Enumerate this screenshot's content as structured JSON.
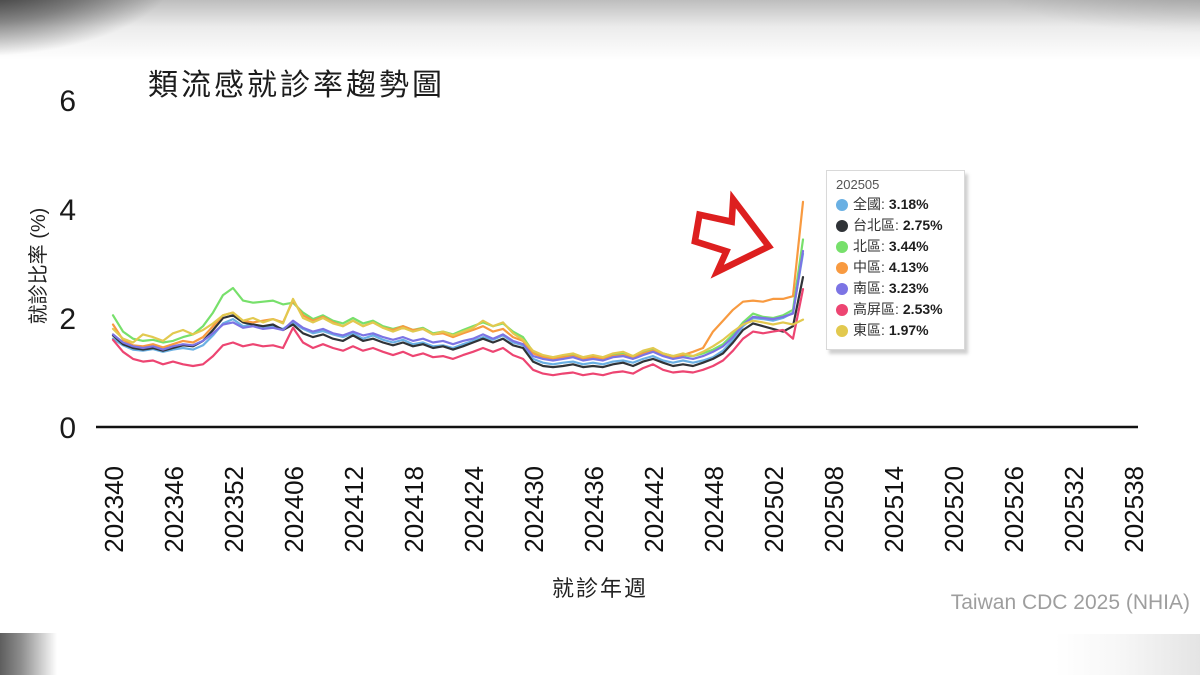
{
  "page": {
    "attribution": "Taiwan CDC 2025 (NHIA)"
  },
  "annotations": {
    "arrow_color": "#dd1f1f"
  },
  "tooltip": {
    "week": "202505",
    "items": [
      {
        "id": "nationwide",
        "label": "全國",
        "value": "3.18%",
        "color": "#6ab0e3"
      },
      {
        "id": "taipei",
        "label": "台北區",
        "value": "2.75%",
        "color": "#2f3337"
      },
      {
        "id": "north",
        "label": "北區",
        "value": "3.44%",
        "color": "#77e06b"
      },
      {
        "id": "central",
        "label": "中區",
        "value": "4.13%",
        "color": "#f89a40"
      },
      {
        "id": "south",
        "label": "南區",
        "value": "3.23%",
        "color": "#7c74e4"
      },
      {
        "id": "kaoping",
        "label": "高屏區",
        "value": "2.53%",
        "color": "#ed4572"
      },
      {
        "id": "east",
        "label": "東區",
        "value": "1.97%",
        "color": "#e2c94f"
      }
    ]
  },
  "chart_data": {
    "type": "line",
    "title": "類流感就診率趨勢圖",
    "xlabel": "就診年週",
    "ylabel": "就診比率 (%)",
    "ylim": [
      0,
      6
    ],
    "yticks": [
      0,
      2,
      4,
      6
    ],
    "grid": false,
    "legend_position": "tooltip-right",
    "x_tick_labels": [
      "202340",
      "202346",
      "202352",
      "202406",
      "202412",
      "202418",
      "202424",
      "202430",
      "202436",
      "202442",
      "202448",
      "202502",
      "202508",
      "202514",
      "202520",
      "202526",
      "202532",
      "202538"
    ],
    "x_axis_total_weeks": 103,
    "weeks": [
      "202340",
      "202341",
      "202342",
      "202343",
      "202344",
      "202345",
      "202346",
      "202347",
      "202348",
      "202349",
      "202350",
      "202351",
      "202352",
      "202401",
      "202402",
      "202403",
      "202404",
      "202405",
      "202406",
      "202407",
      "202408",
      "202409",
      "202410",
      "202411",
      "202412",
      "202413",
      "202414",
      "202415",
      "202416",
      "202417",
      "202418",
      "202419",
      "202420",
      "202421",
      "202422",
      "202423",
      "202424",
      "202425",
      "202426",
      "202427",
      "202428",
      "202429",
      "202430",
      "202431",
      "202432",
      "202433",
      "202434",
      "202435",
      "202436",
      "202437",
      "202438",
      "202439",
      "202440",
      "202441",
      "202442",
      "202443",
      "202444",
      "202445",
      "202446",
      "202447",
      "202448",
      "202449",
      "202450",
      "202451",
      "202452",
      "202501",
      "202502",
      "202503",
      "202504",
      "202505"
    ],
    "series": [
      {
        "id": "nationwide",
        "name": "全國",
        "color": "#6ab0e3",
        "values": [
          1.62,
          1.5,
          1.42,
          1.4,
          1.43,
          1.38,
          1.42,
          1.45,
          1.42,
          1.5,
          1.68,
          1.9,
          1.98,
          1.85,
          1.88,
          1.82,
          1.85,
          1.8,
          1.92,
          1.8,
          1.72,
          1.76,
          1.7,
          1.65,
          1.72,
          1.62,
          1.68,
          1.6,
          1.55,
          1.6,
          1.52,
          1.55,
          1.48,
          1.5,
          1.45,
          1.52,
          1.58,
          1.65,
          1.6,
          1.68,
          1.55,
          1.5,
          1.25,
          1.18,
          1.15,
          1.18,
          1.2,
          1.15,
          1.18,
          1.15,
          1.2,
          1.22,
          1.18,
          1.25,
          1.3,
          1.22,
          1.18,
          1.22,
          1.18,
          1.22,
          1.28,
          1.4,
          1.6,
          1.85,
          2.0,
          1.98,
          1.95,
          2.0,
          2.1,
          3.18
        ]
      },
      {
        "id": "taipei",
        "name": "台北區",
        "color": "#2f3337",
        "values": [
          1.68,
          1.52,
          1.45,
          1.42,
          1.45,
          1.4,
          1.45,
          1.5,
          1.48,
          1.58,
          1.78,
          2.0,
          2.05,
          1.92,
          1.88,
          1.85,
          1.88,
          1.78,
          1.88,
          1.72,
          1.65,
          1.7,
          1.62,
          1.58,
          1.68,
          1.58,
          1.62,
          1.55,
          1.5,
          1.55,
          1.48,
          1.52,
          1.45,
          1.48,
          1.42,
          1.48,
          1.55,
          1.62,
          1.55,
          1.62,
          1.5,
          1.45,
          1.2,
          1.12,
          1.1,
          1.12,
          1.15,
          1.1,
          1.12,
          1.1,
          1.15,
          1.18,
          1.12,
          1.2,
          1.25,
          1.18,
          1.12,
          1.15,
          1.12,
          1.18,
          1.25,
          1.35,
          1.55,
          1.78,
          1.9,
          1.85,
          1.8,
          1.75,
          1.85,
          2.75
        ]
      },
      {
        "id": "north",
        "name": "北區",
        "color": "#77e06b",
        "values": [
          2.05,
          1.75,
          1.62,
          1.58,
          1.6,
          1.55,
          1.58,
          1.65,
          1.7,
          1.85,
          2.1,
          2.42,
          2.55,
          2.32,
          2.28,
          2.3,
          2.32,
          2.25,
          2.28,
          2.1,
          1.98,
          2.05,
          1.95,
          1.9,
          2.0,
          1.9,
          1.95,
          1.85,
          1.8,
          1.85,
          1.78,
          1.82,
          1.72,
          1.75,
          1.7,
          1.78,
          1.85,
          1.92,
          1.85,
          1.9,
          1.75,
          1.65,
          1.38,
          1.3,
          1.28,
          1.3,
          1.32,
          1.28,
          1.3,
          1.28,
          1.32,
          1.35,
          1.3,
          1.38,
          1.42,
          1.35,
          1.3,
          1.32,
          1.3,
          1.35,
          1.42,
          1.52,
          1.7,
          1.92,
          2.08,
          2.02,
          2.0,
          2.05,
          2.15,
          3.44
        ]
      },
      {
        "id": "central",
        "name": "中區",
        "color": "#f89a40",
        "values": [
          1.88,
          1.6,
          1.5,
          1.48,
          1.52,
          1.46,
          1.52,
          1.58,
          1.55,
          1.65,
          1.85,
          2.05,
          2.1,
          1.95,
          1.92,
          1.95,
          1.98,
          1.92,
          2.32,
          2.05,
          1.95,
          2.02,
          1.92,
          1.85,
          1.95,
          1.85,
          1.92,
          1.82,
          1.78,
          1.85,
          1.78,
          1.8,
          1.7,
          1.72,
          1.65,
          1.72,
          1.78,
          1.85,
          1.75,
          1.8,
          1.65,
          1.58,
          1.35,
          1.28,
          1.25,
          1.28,
          1.3,
          1.25,
          1.28,
          1.25,
          1.3,
          1.32,
          1.28,
          1.35,
          1.4,
          1.32,
          1.28,
          1.32,
          1.38,
          1.45,
          1.75,
          1.95,
          2.15,
          2.3,
          2.32,
          2.3,
          2.35,
          2.35,
          2.4,
          4.13
        ]
      },
      {
        "id": "south",
        "name": "南區",
        "color": "#7c74e4",
        "values": [
          1.7,
          1.55,
          1.48,
          1.45,
          1.48,
          1.42,
          1.48,
          1.52,
          1.5,
          1.58,
          1.72,
          1.88,
          1.92,
          1.82,
          1.85,
          1.8,
          1.82,
          1.78,
          1.95,
          1.82,
          1.75,
          1.8,
          1.72,
          1.68,
          1.75,
          1.68,
          1.72,
          1.65,
          1.6,
          1.65,
          1.58,
          1.62,
          1.55,
          1.58,
          1.52,
          1.58,
          1.62,
          1.7,
          1.62,
          1.7,
          1.58,
          1.52,
          1.3,
          1.25,
          1.22,
          1.25,
          1.28,
          1.22,
          1.25,
          1.22,
          1.28,
          1.3,
          1.25,
          1.32,
          1.38,
          1.3,
          1.25,
          1.28,
          1.25,
          1.3,
          1.38,
          1.48,
          1.65,
          1.88,
          2.02,
          2.0,
          1.98,
          2.02,
          2.08,
          3.23
        ]
      },
      {
        "id": "kaoping",
        "name": "高屏區",
        "color": "#ed4572",
        "values": [
          1.6,
          1.38,
          1.25,
          1.2,
          1.22,
          1.15,
          1.2,
          1.15,
          1.12,
          1.15,
          1.3,
          1.5,
          1.55,
          1.48,
          1.52,
          1.48,
          1.5,
          1.45,
          1.82,
          1.55,
          1.45,
          1.52,
          1.45,
          1.4,
          1.48,
          1.4,
          1.45,
          1.38,
          1.32,
          1.38,
          1.3,
          1.35,
          1.28,
          1.3,
          1.25,
          1.32,
          1.38,
          1.45,
          1.38,
          1.45,
          1.32,
          1.25,
          1.05,
          0.98,
          0.95,
          0.98,
          1.0,
          0.95,
          0.98,
          0.95,
          1.0,
          1.02,
          0.98,
          1.08,
          1.15,
          1.05,
          1.0,
          1.02,
          1.0,
          1.05,
          1.12,
          1.22,
          1.4,
          1.62,
          1.75,
          1.72,
          1.75,
          1.78,
          1.62,
          2.53
        ]
      },
      {
        "id": "east",
        "name": "東區",
        "color": "#e2c94f",
        "values": [
          1.8,
          1.62,
          1.55,
          1.7,
          1.65,
          1.58,
          1.72,
          1.78,
          1.7,
          1.78,
          1.9,
          2.05,
          2.1,
          1.95,
          2.0,
          1.92,
          1.98,
          1.9,
          2.35,
          2.0,
          1.92,
          2.0,
          1.9,
          1.85,
          1.95,
          1.85,
          1.92,
          1.82,
          1.75,
          1.82,
          1.75,
          1.8,
          1.7,
          1.75,
          1.68,
          1.75,
          1.82,
          1.95,
          1.85,
          1.92,
          1.72,
          1.6,
          1.4,
          1.32,
          1.28,
          1.32,
          1.35,
          1.28,
          1.32,
          1.28,
          1.35,
          1.38,
          1.3,
          1.4,
          1.45,
          1.35,
          1.3,
          1.35,
          1.3,
          1.38,
          1.48,
          1.6,
          1.75,
          1.88,
          1.95,
          1.92,
          1.88,
          1.92,
          1.88,
          1.97
        ]
      }
    ]
  }
}
